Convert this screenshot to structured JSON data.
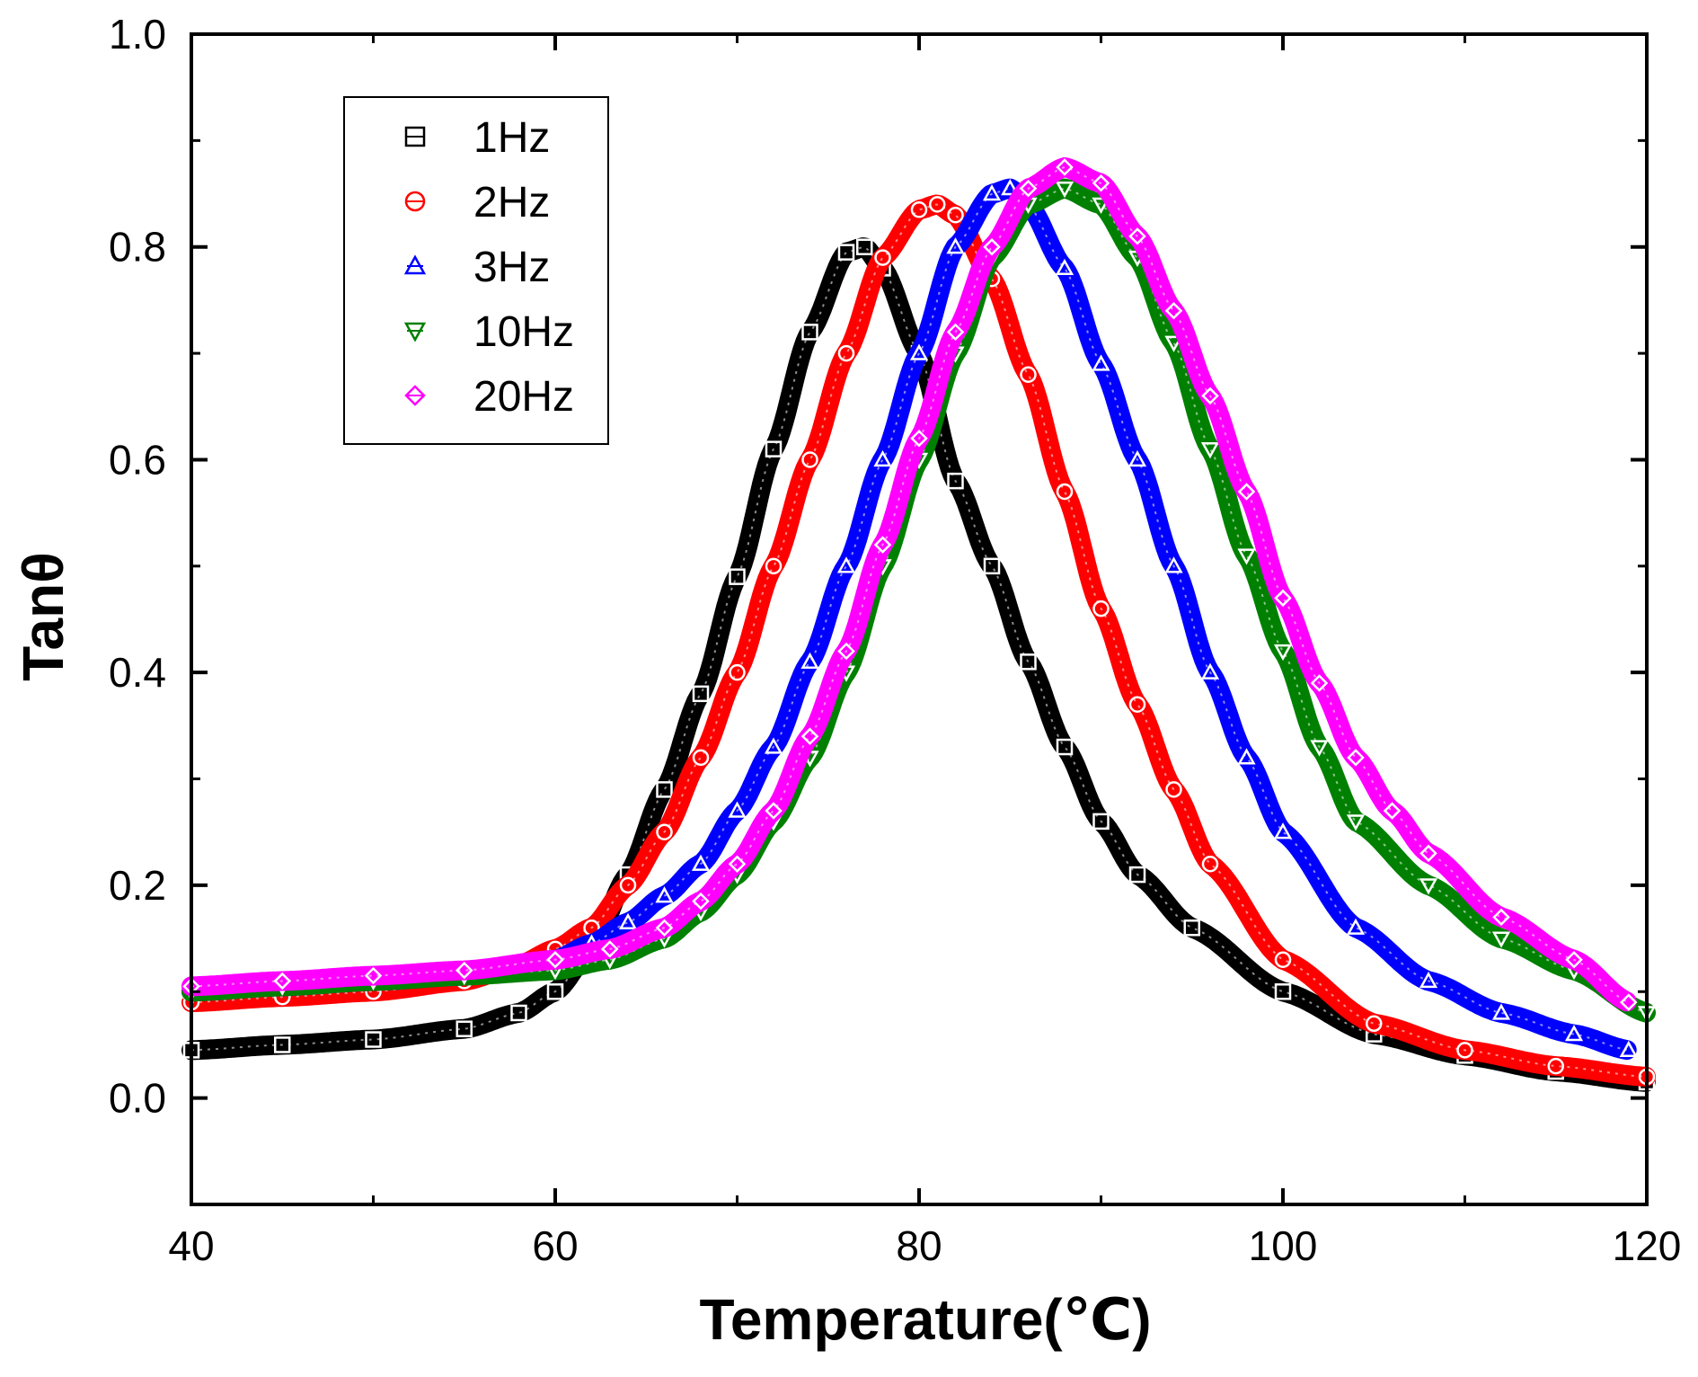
{
  "chart_data": {
    "type": "scatter",
    "title": "",
    "xlabel": "Temperature(℃)",
    "ylabel": "Tanθ",
    "xlim": [
      40,
      120
    ],
    "ylim": [
      -0.1,
      1.0
    ],
    "xticks": [
      "40",
      "60",
      "80",
      "100",
      "120"
    ],
    "yticks": [
      "0.0",
      "0.2",
      "0.4",
      "0.6",
      "0.8",
      "1.0"
    ],
    "xtick_values": [
      40,
      60,
      80,
      100,
      120
    ],
    "ytick_values": [
      0.0,
      0.2,
      0.4,
      0.6,
      0.8,
      1.0
    ],
    "grid": false,
    "legend_position": "top-left",
    "series": [
      {
        "name": "1Hz",
        "color": "#000000",
        "marker": "square",
        "x": [
          40,
          45,
          50,
          55,
          58,
          60,
          62,
          64,
          66,
          68,
          70,
          72,
          74,
          76,
          77,
          78,
          80,
          82,
          84,
          86,
          88,
          90,
          92,
          95,
          100,
          105,
          110,
          115,
          120
        ],
        "y": [
          0.045,
          0.05,
          0.055,
          0.065,
          0.08,
          0.1,
          0.14,
          0.21,
          0.29,
          0.38,
          0.49,
          0.61,
          0.72,
          0.795,
          0.8,
          0.78,
          0.7,
          0.58,
          0.5,
          0.41,
          0.33,
          0.26,
          0.21,
          0.16,
          0.1,
          0.06,
          0.04,
          0.025,
          0.015
        ]
      },
      {
        "name": "2Hz",
        "color": "#ff0000",
        "marker": "circle",
        "x": [
          40,
          45,
          50,
          55,
          58,
          60,
          62,
          64,
          66,
          68,
          70,
          72,
          74,
          76,
          78,
          80,
          81,
          82,
          84,
          86,
          88,
          90,
          92,
          94,
          96,
          100,
          105,
          110,
          115,
          120
        ],
        "y": [
          0.09,
          0.095,
          0.1,
          0.11,
          0.125,
          0.14,
          0.16,
          0.2,
          0.25,
          0.32,
          0.4,
          0.5,
          0.6,
          0.7,
          0.79,
          0.835,
          0.84,
          0.83,
          0.77,
          0.68,
          0.57,
          0.46,
          0.37,
          0.29,
          0.22,
          0.13,
          0.07,
          0.045,
          0.03,
          0.02
        ]
      },
      {
        "name": "3Hz",
        "color": "#0000ff",
        "marker": "triangle-up",
        "x": [
          40,
          45,
          50,
          55,
          60,
          62,
          64,
          66,
          68,
          70,
          72,
          74,
          76,
          78,
          80,
          82,
          84,
          85,
          86,
          88,
          90,
          92,
          94,
          96,
          98,
          100,
          104,
          108,
          112,
          116,
          119
        ],
        "y": [
          0.1,
          0.105,
          0.11,
          0.115,
          0.13,
          0.145,
          0.165,
          0.19,
          0.22,
          0.27,
          0.33,
          0.41,
          0.5,
          0.6,
          0.7,
          0.8,
          0.85,
          0.855,
          0.84,
          0.78,
          0.69,
          0.6,
          0.5,
          0.4,
          0.32,
          0.25,
          0.16,
          0.11,
          0.08,
          0.06,
          0.045
        ]
      },
      {
        "name": "10Hz",
        "color": "#008000",
        "marker": "triangle-down",
        "x": [
          40,
          45,
          50,
          55,
          60,
          63,
          66,
          68,
          70,
          72,
          74,
          76,
          78,
          80,
          82,
          84,
          86,
          88,
          90,
          92,
          94,
          96,
          98,
          100,
          102,
          104,
          108,
          112,
          116,
          120
        ],
        "y": [
          0.1,
          0.105,
          0.11,
          0.115,
          0.12,
          0.13,
          0.15,
          0.175,
          0.21,
          0.26,
          0.32,
          0.4,
          0.5,
          0.6,
          0.7,
          0.79,
          0.84,
          0.855,
          0.84,
          0.79,
          0.71,
          0.61,
          0.51,
          0.42,
          0.33,
          0.26,
          0.2,
          0.15,
          0.12,
          0.08
        ]
      },
      {
        "name": "20Hz",
        "color": "#ff00ff",
        "marker": "diamond",
        "x": [
          40,
          45,
          50,
          55,
          60,
          63,
          66,
          68,
          70,
          72,
          74,
          76,
          78,
          80,
          82,
          84,
          86,
          88,
          90,
          92,
          94,
          96,
          98,
          100,
          102,
          104,
          106,
          108,
          112,
          116,
          119
        ],
        "y": [
          0.105,
          0.11,
          0.115,
          0.12,
          0.13,
          0.14,
          0.16,
          0.185,
          0.22,
          0.27,
          0.34,
          0.42,
          0.52,
          0.62,
          0.72,
          0.8,
          0.855,
          0.875,
          0.86,
          0.81,
          0.74,
          0.66,
          0.57,
          0.47,
          0.39,
          0.32,
          0.27,
          0.23,
          0.17,
          0.13,
          0.09
        ]
      }
    ]
  }
}
